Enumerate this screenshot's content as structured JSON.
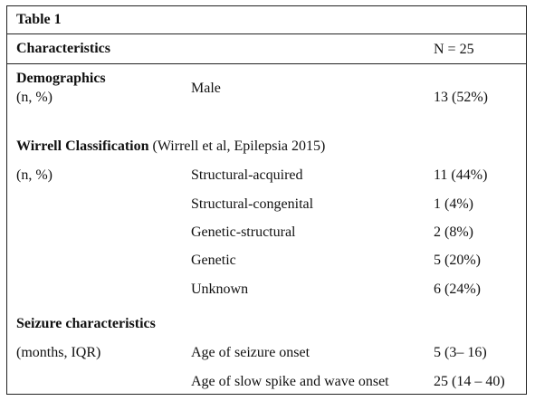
{
  "table": {
    "title": "Table 1",
    "header": {
      "characteristics": "Characteristics",
      "n": "N = 25"
    },
    "demographics": {
      "label": "Demographics",
      "sublabel": "(n, %)",
      "item": "Male",
      "value": "13 (52%)"
    },
    "wirrell": {
      "label": "Wirrell Classification",
      "citation": " (Wirrell et al, Epilepsia 2015)",
      "sublabel": "(n, %)",
      "rows": [
        {
          "item": "Structural-acquired",
          "value": "11 (44%)"
        },
        {
          "item": "Structural-congenital",
          "value": "1 (4%)"
        },
        {
          "item": "Genetic-structural",
          "value": "2 (8%)"
        },
        {
          "item": "Genetic",
          "value": "5 (20%)"
        },
        {
          "item": "Unknown",
          "value": "6 (24%)"
        }
      ]
    },
    "seizure": {
      "label": "Seizure characteristics",
      "sublabel": "(months, IQR)",
      "rows": [
        {
          "item": "Age of seizure onset",
          "value": "5 (3– 16)"
        },
        {
          "item": "Age of slow spike and wave onset",
          "value": "25 (14 – 40)"
        }
      ]
    }
  }
}
